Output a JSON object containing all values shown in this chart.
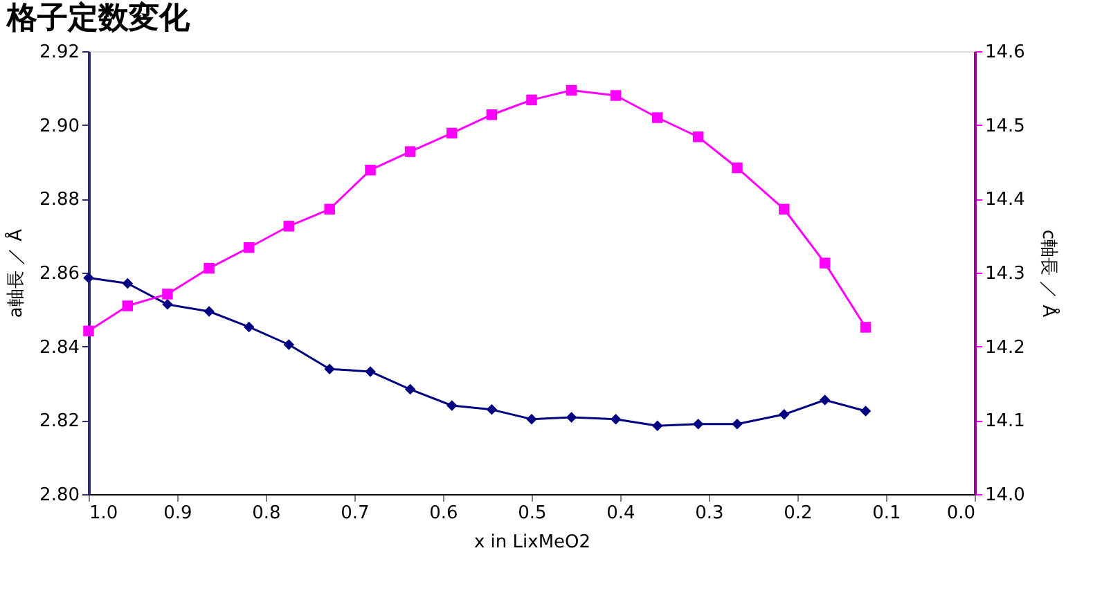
{
  "chart_data": {
    "type": "line",
    "title": "格子定数変化",
    "xlabel": "x in LixMeO2",
    "ylabel": "a軸長 ／ Å",
    "y2label": "c軸長 ／ Å",
    "x": [
      1.0,
      0.956,
      0.911,
      0.864,
      0.819,
      0.774,
      0.728,
      0.682,
      0.637,
      0.59,
      0.545,
      0.5,
      0.455,
      0.405,
      0.358,
      0.312,
      0.268,
      0.215,
      0.169,
      0.123
    ],
    "series": [
      {
        "color": "#000080",
        "marker": "diamond",
        "values": [
          2.8586,
          2.8571,
          2.8514,
          2.8495,
          2.8453,
          2.8405,
          2.8339,
          2.8332,
          2.8284,
          2.824,
          2.8229,
          2.8203,
          2.8208,
          2.8203,
          2.8185,
          2.819,
          2.819,
          2.8216,
          2.8255,
          2.8225
        ]
      },
      {
        "color": "#ff00ff",
        "marker": "square",
        "axis": "y2",
        "values": [
          14.221,
          14.255,
          14.271,
          14.306,
          14.334,
          14.363,
          14.386,
          14.439,
          14.464,
          14.489,
          14.514,
          14.534,
          14.547,
          14.54,
          14.51,
          14.484,
          14.442,
          14.386,
          14.313,
          14.226
        ]
      }
    ],
    "xlim": [
      1.0,
      0.0
    ],
    "xticks": [
      {
        "value": 1.0,
        "label": "1.0"
      },
      0.9,
      0.8,
      0.7,
      0.6,
      0.5,
      0.4,
      0.3,
      0.2,
      0.1,
      {
        "value": 0.0,
        "label": "0.0"
      }
    ],
    "ylim": [
      2.8,
      2.92
    ],
    "yticks": [
      {
        "value": 2.8,
        "label": "2.80"
      },
      2.82,
      2.84,
      2.86,
      2.88,
      {
        "value": 2.9,
        "label": "2.90"
      },
      2.92
    ],
    "y2lim": [
      14.0,
      14.6
    ],
    "y2ticks": [
      {
        "value": 14.0,
        "label": "14.0"
      },
      14.1,
      14.2,
      14.3,
      14.4,
      14.5,
      14.6
    ]
  }
}
